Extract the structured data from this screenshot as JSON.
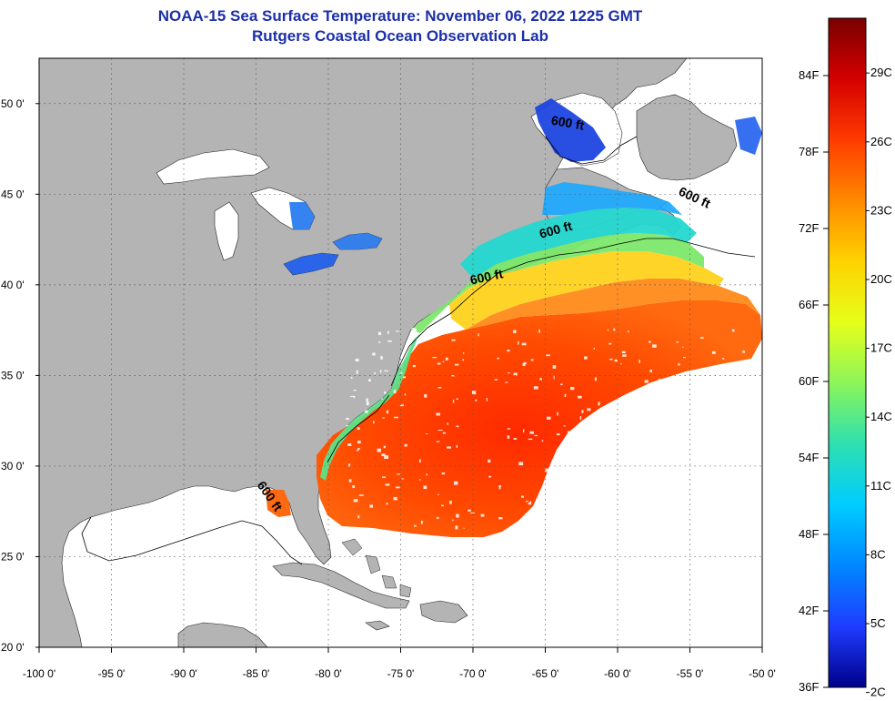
{
  "header": {
    "title": "NOAA-15 Sea Surface Temperature:  November 06, 2022 1225 GMT",
    "subtitle": "Rutgers Coastal Ocean Observation Lab"
  },
  "map": {
    "lon_range": [
      -100,
      -50
    ],
    "lat_range": [
      20,
      52.5
    ],
    "lon_ticks": [
      "-100 0'",
      "-95 0'",
      "-90 0'",
      "-85 0'",
      "-80 0'",
      "-75 0'",
      "-70 0'",
      "-65 0'",
      "-60 0'",
      "-55 0'",
      "-50 0'"
    ],
    "lat_ticks": [
      "20 0'",
      "25 0'",
      "30 0'",
      "35 0'",
      "40 0'",
      "45 0'",
      "50 0'"
    ],
    "land_color": "#b4b4b4",
    "water_color": "#ffffff",
    "contour_labels": [
      {
        "text": "600 ft",
        "lon": -63.5,
        "lat": 48.7,
        "angle": 10
      },
      {
        "text": "600 ft",
        "lon": -54.8,
        "lat": 44.6,
        "angle": 25
      },
      {
        "text": "600 ft",
        "lon": -64.2,
        "lat": 42.8,
        "angle": -15
      },
      {
        "text": "600 ft",
        "lon": -69.0,
        "lat": 40.2,
        "angle": -12
      },
      {
        "text": "600 ft",
        "lon": -84.3,
        "lat": 28.2,
        "angle": 55
      }
    ]
  },
  "colorbar": {
    "fahrenheit_labels": [
      "84F",
      "78F",
      "72F",
      "66F",
      "60F",
      "54F",
      "48F",
      "42F",
      "36F"
    ],
    "celsius_labels": [
      "29C",
      "26C",
      "23C",
      "20C",
      "17C",
      "14C",
      "11C",
      "8C",
      "5C",
      "2C"
    ],
    "colors": [
      "#7a0000",
      "#d40000",
      "#ff3b00",
      "#ff8a00",
      "#ffd200",
      "#e6ff1a",
      "#8cf55a",
      "#2ee0b0",
      "#00ccff",
      "#0088ff",
      "#1f3cff",
      "#00008a"
    ]
  }
}
